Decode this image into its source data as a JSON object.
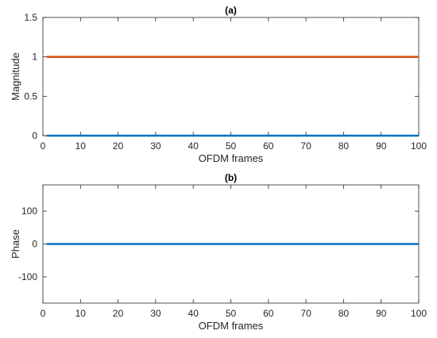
{
  "chart_data": [
    {
      "type": "line",
      "title": "(a)",
      "xlabel": "OFDM frames",
      "ylabel": "Magnitude",
      "xlim": [
        0,
        100
      ],
      "ylim": [
        0,
        1.5
      ],
      "xticks": [
        "0",
        "10",
        "20",
        "30",
        "40",
        "50",
        "60",
        "70",
        "80",
        "90",
        "100"
      ],
      "yticks": [
        "0",
        "0.5",
        "1",
        "1.5"
      ],
      "xtick_values": [
        0,
        10,
        20,
        30,
        40,
        50,
        60,
        70,
        80,
        90,
        100
      ],
      "ytick_values": [
        0,
        0.5,
        1,
        1.5
      ],
      "grid": false,
      "series": [
        {
          "color": "#d95319",
          "x": [
            1,
            100
          ],
          "y": [
            1,
            1
          ]
        },
        {
          "color": "#0072bd",
          "x": [
            1,
            100
          ],
          "y": [
            0,
            0
          ]
        }
      ]
    },
    {
      "type": "line",
      "title": "(b)",
      "xlabel": "OFDM frames",
      "ylabel": "Phase",
      "xlim": [
        0,
        100
      ],
      "ylim": [
        -180,
        180
      ],
      "xticks": [
        "0",
        "10",
        "20",
        "30",
        "40",
        "50",
        "60",
        "70",
        "80",
        "90",
        "100"
      ],
      "yticks": [
        "-100",
        "0",
        "100"
      ],
      "xtick_values": [
        0,
        10,
        20,
        30,
        40,
        50,
        60,
        70,
        80,
        90,
        100
      ],
      "ytick_values": [
        -100,
        0,
        100
      ],
      "grid": false,
      "series": [
        {
          "color": "#0072bd",
          "x": [
            1,
            100
          ],
          "y": [
            0,
            0
          ]
        }
      ]
    }
  ]
}
